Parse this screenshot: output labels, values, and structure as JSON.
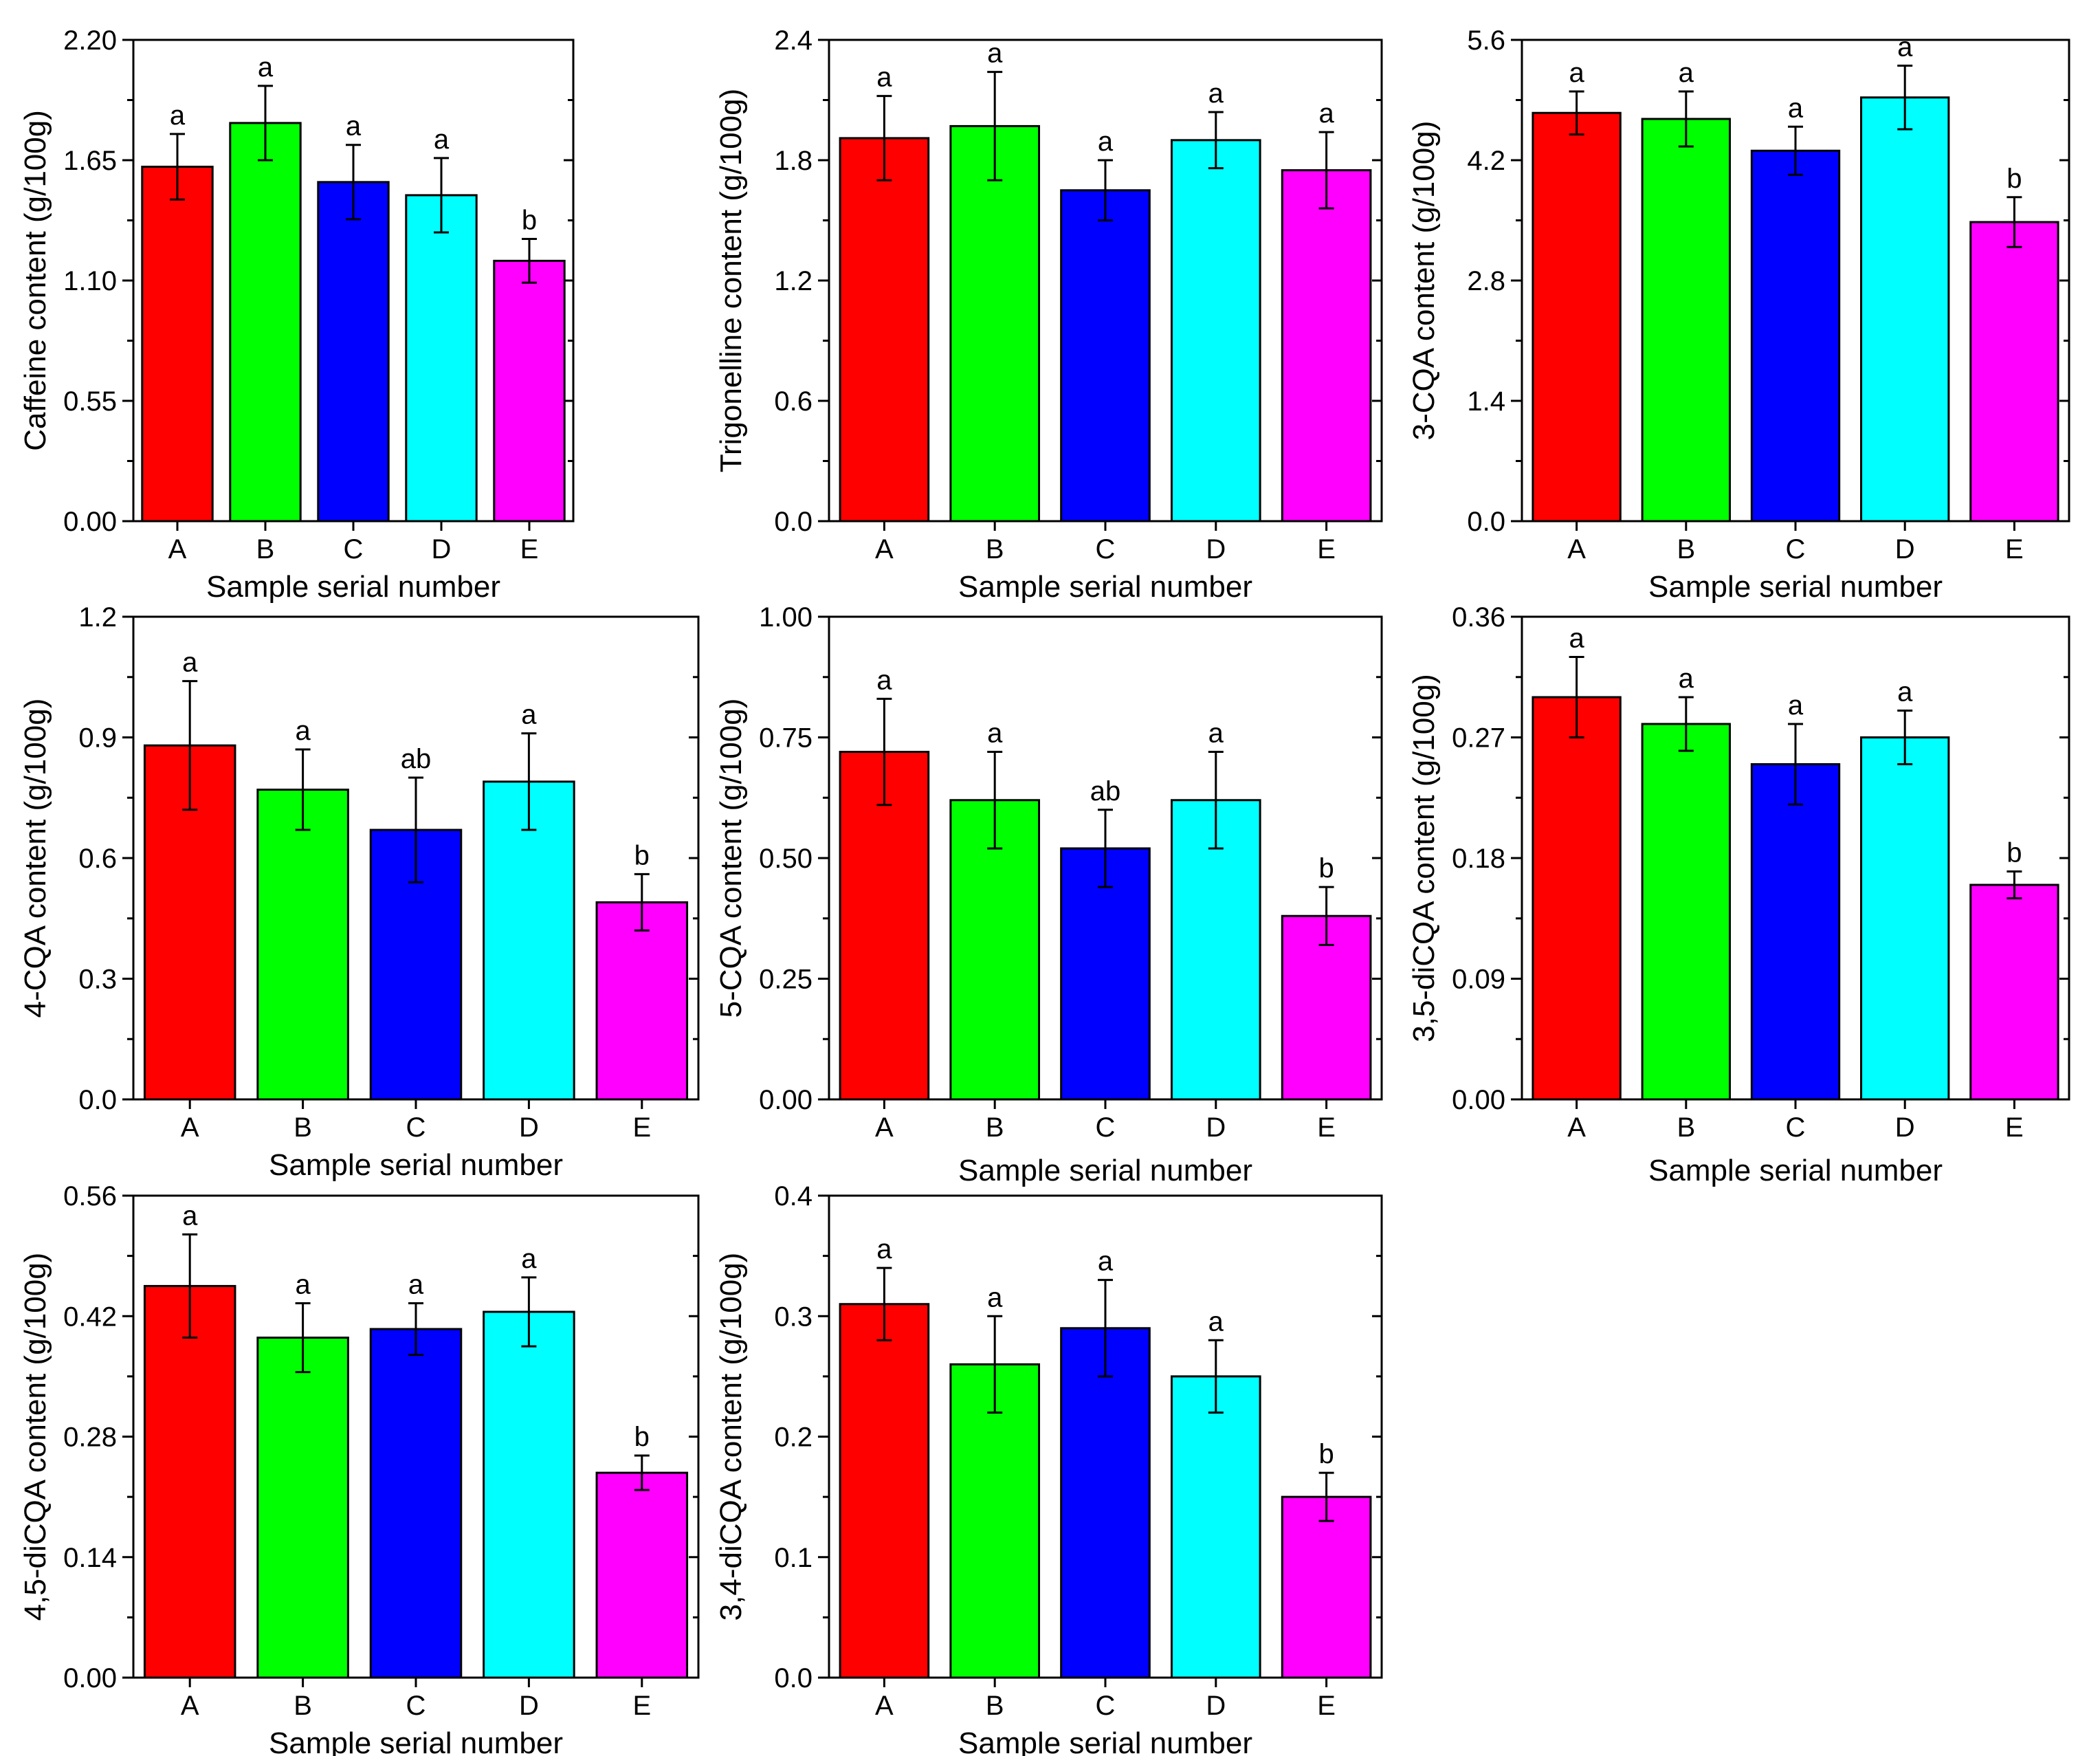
{
  "colors": {
    "A": "#ff0000",
    "B": "#00ff00",
    "C": "#0000ff",
    "D": "#00ffff",
    "E": "#ff00ff",
    "stroke": "#000000"
  },
  "chart_data": [
    {
      "type": "bar",
      "categories": [
        "A",
        "B",
        "C",
        "D",
        "E"
      ],
      "values": [
        1.62,
        1.82,
        1.55,
        1.49,
        1.19
      ],
      "errors": [
        0.15,
        0.17,
        0.17,
        0.17,
        0.1
      ],
      "labels": [
        "a",
        "a",
        "a",
        "a",
        "b"
      ],
      "xlabel": "Sample serial number",
      "ylabel": "Caffeine content (g/100g)",
      "ylim": [
        0,
        2.2
      ],
      "yticks": [
        "0.00",
        "0.55",
        "1.10",
        "1.65",
        "2.20"
      ]
    },
    {
      "type": "bar",
      "categories": [
        "A",
        "B",
        "C",
        "D",
        "E"
      ],
      "values": [
        1.91,
        1.97,
        1.65,
        1.9,
        1.75
      ],
      "errors": [
        0.21,
        0.27,
        0.15,
        0.14,
        0.19
      ],
      "labels": [
        "a",
        "a",
        "a",
        "a",
        "a"
      ],
      "xlabel": "Sample serial number",
      "ylabel": "Trigonelline  content (g/100g)",
      "ylim": [
        0,
        2.4
      ],
      "yticks": [
        "0.0",
        "0.6",
        "1.2",
        "1.8",
        "2.4"
      ]
    },
    {
      "type": "bar",
      "categories": [
        "A",
        "B",
        "C",
        "D",
        "E"
      ],
      "values": [
        4.75,
        4.68,
        4.31,
        4.93,
        3.48
      ],
      "errors": [
        0.25,
        0.32,
        0.28,
        0.37,
        0.29
      ],
      "labels": [
        "a",
        "a",
        "a",
        "a",
        "b"
      ],
      "xlabel": "Sample serial number",
      "ylabel": "3-CQA  content (g/100g)",
      "ylim": [
        0,
        5.6
      ],
      "yticks": [
        "0.0",
        "1.4",
        "2.8",
        "4.2",
        "5.6"
      ]
    },
    {
      "type": "bar",
      "categories": [
        "A",
        "B",
        "C",
        "D",
        "E"
      ],
      "values": [
        0.88,
        0.77,
        0.67,
        0.79,
        0.49
      ],
      "errors": [
        0.16,
        0.1,
        0.13,
        0.12,
        0.07
      ],
      "labels": [
        "a",
        "a",
        "ab",
        "a",
        "b"
      ],
      "xlabel": "Sample serial number",
      "ylabel": "4-CQA content (g/100g)",
      "ylim": [
        0,
        1.2
      ],
      "yticks": [
        "0.0",
        "0.3",
        "0.6",
        "0.9",
        "1.2"
      ]
    },
    {
      "type": "bar",
      "categories": [
        "A",
        "B",
        "C",
        "D",
        "E"
      ],
      "values": [
        0.72,
        0.62,
        0.52,
        0.62,
        0.38
      ],
      "errors": [
        0.11,
        0.1,
        0.08,
        0.1,
        0.06
      ],
      "labels": [
        "a",
        "a",
        "ab",
        "a",
        "b"
      ],
      "xlabel": "Sample serial number",
      "ylabel": "5-CQA  content (g/100g)",
      "ylim": [
        0,
        1.0
      ],
      "yticks": [
        "0.00",
        "0.25",
        "0.50",
        "0.75",
        "1.00"
      ]
    },
    {
      "type": "bar",
      "categories": [
        "A",
        "B",
        "C",
        "D",
        "E"
      ],
      "values": [
        0.3,
        0.28,
        0.25,
        0.27,
        0.16
      ],
      "errors": [
        0.03,
        0.02,
        0.03,
        0.02,
        0.01
      ],
      "labels": [
        "a",
        "a",
        "a",
        "a",
        "b"
      ],
      "xlabel": "Sample serial number",
      "ylabel": "3,5-diCQA content (g/100g)",
      "ylim": [
        0,
        0.36
      ],
      "yticks": [
        "0.00",
        "0.09",
        "0.18",
        "0.27",
        "0.36"
      ]
    },
    {
      "type": "bar",
      "categories": [
        "A",
        "B",
        "C",
        "D",
        "E"
      ],
      "values": [
        0.455,
        0.395,
        0.405,
        0.425,
        0.238
      ],
      "errors": [
        0.06,
        0.04,
        0.03,
        0.04,
        0.02
      ],
      "labels": [
        "a",
        "a",
        "a",
        "a",
        "b"
      ],
      "xlabel": "Sample serial number",
      "ylabel": "4,5-diCQA content (g/100g)",
      "ylim": [
        0,
        0.56
      ],
      "yticks": [
        "0.00",
        "0.14",
        "0.28",
        "0.42",
        "0.56"
      ]
    },
    {
      "type": "bar",
      "categories": [
        "A",
        "B",
        "C",
        "D",
        "E"
      ],
      "values": [
        0.31,
        0.26,
        0.29,
        0.25,
        0.15
      ],
      "errors": [
        0.03,
        0.04,
        0.04,
        0.03,
        0.02
      ],
      "labels": [
        "a",
        "a",
        "a",
        "a",
        "b"
      ],
      "xlabel": "Sample serial number",
      "ylabel": "3,4-diCQA content (g/100g)",
      "ylim": [
        0,
        0.4
      ],
      "yticks": [
        "0.0",
        "0.1",
        "0.2",
        "0.3",
        "0.4"
      ]
    }
  ]
}
